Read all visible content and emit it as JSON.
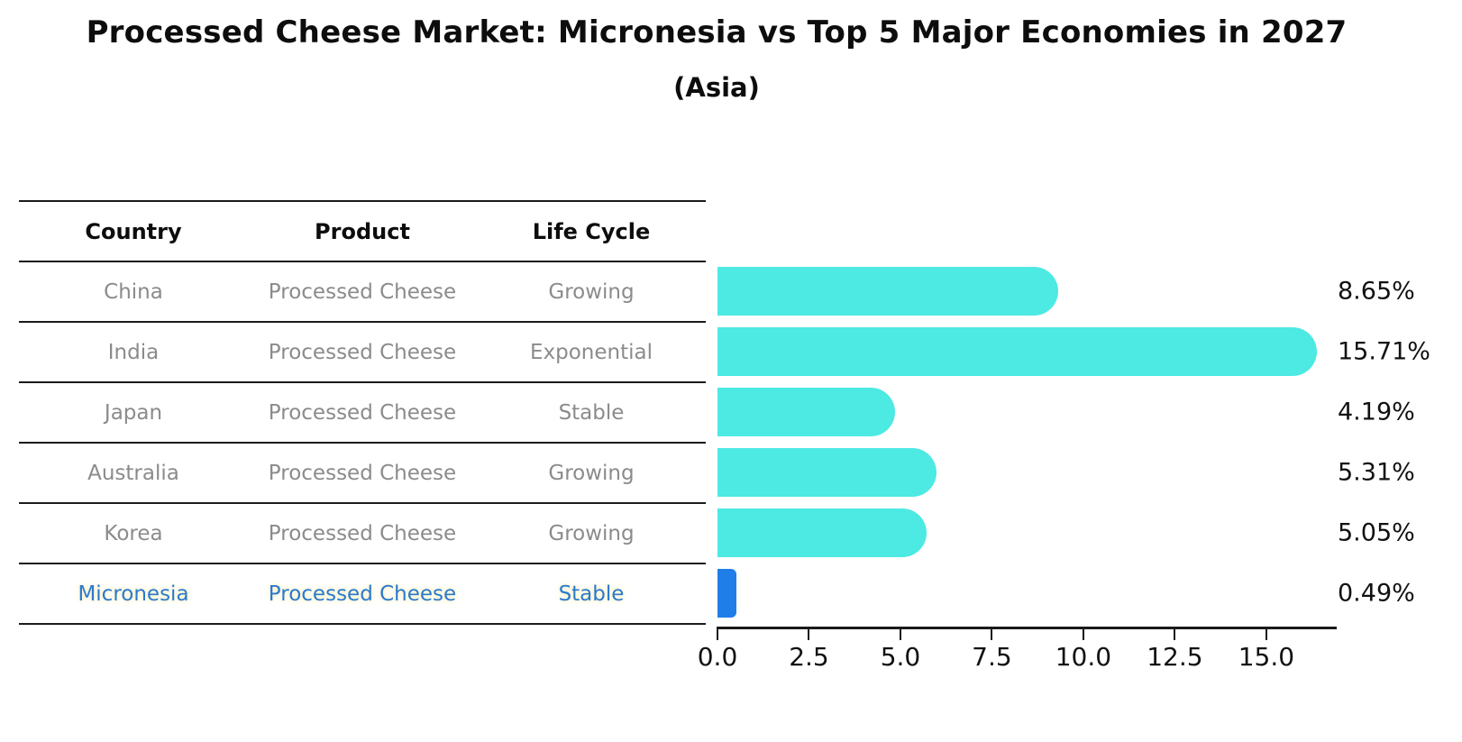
{
  "title": "Processed Cheese Market: Micronesia vs Top 5 Major Economies in 2027",
  "subtitle": "(Asia)",
  "table": {
    "columns": [
      "Country",
      "Product",
      "Life Cycle"
    ],
    "rows": [
      {
        "country": "China",
        "product": "Processed Cheese",
        "life_cycle": "Growing"
      },
      {
        "country": "India",
        "product": "Processed Cheese",
        "life_cycle": "Exponential"
      },
      {
        "country": "Japan",
        "product": "Processed Cheese",
        "life_cycle": "Stable"
      },
      {
        "country": "Australia",
        "product": "Processed Cheese",
        "life_cycle": "Growing"
      },
      {
        "country": "Korea",
        "product": "Processed Cheese",
        "life_cycle": "Growing"
      },
      {
        "country": "Micronesia",
        "product": "Processed Cheese",
        "life_cycle": "Stable"
      }
    ],
    "highlighted_row": "Micronesia"
  },
  "chart_data": {
    "type": "bar",
    "orientation": "horizontal",
    "title": "Processed Cheese Market: Micronesia vs Top 5 Major Economies in 2027",
    "subtitle": "(Asia)",
    "categories": [
      "China",
      "India",
      "Japan",
      "Australia",
      "Korea",
      "Micronesia"
    ],
    "values": [
      8.65,
      15.71,
      4.19,
      5.31,
      5.05,
      0.49
    ],
    "value_labels": [
      "8.65%",
      "15.71%",
      "4.19%",
      "5.31%",
      "5.05%",
      "0.49%"
    ],
    "xlabel": "",
    "ylabel": "",
    "xlim": [
      0,
      16.9
    ],
    "x_ticks": [
      0.0,
      2.5,
      5.0,
      7.5,
      10.0,
      12.5,
      15.0
    ],
    "x_tick_labels": [
      "0.0",
      "2.5",
      "5.0",
      "7.5",
      "10.0",
      "12.5",
      "15.0"
    ],
    "grid": false,
    "legend": false,
    "colors": {
      "bar": "#4DE9E3",
      "highlight_bar": "#1F7EE8",
      "highlight_text": "#2B7ACE",
      "highlight_halo": "#FAF0C0",
      "value_label": "#111111",
      "row_text": "#8B8B8B",
      "line": "#1A1A1A"
    }
  }
}
